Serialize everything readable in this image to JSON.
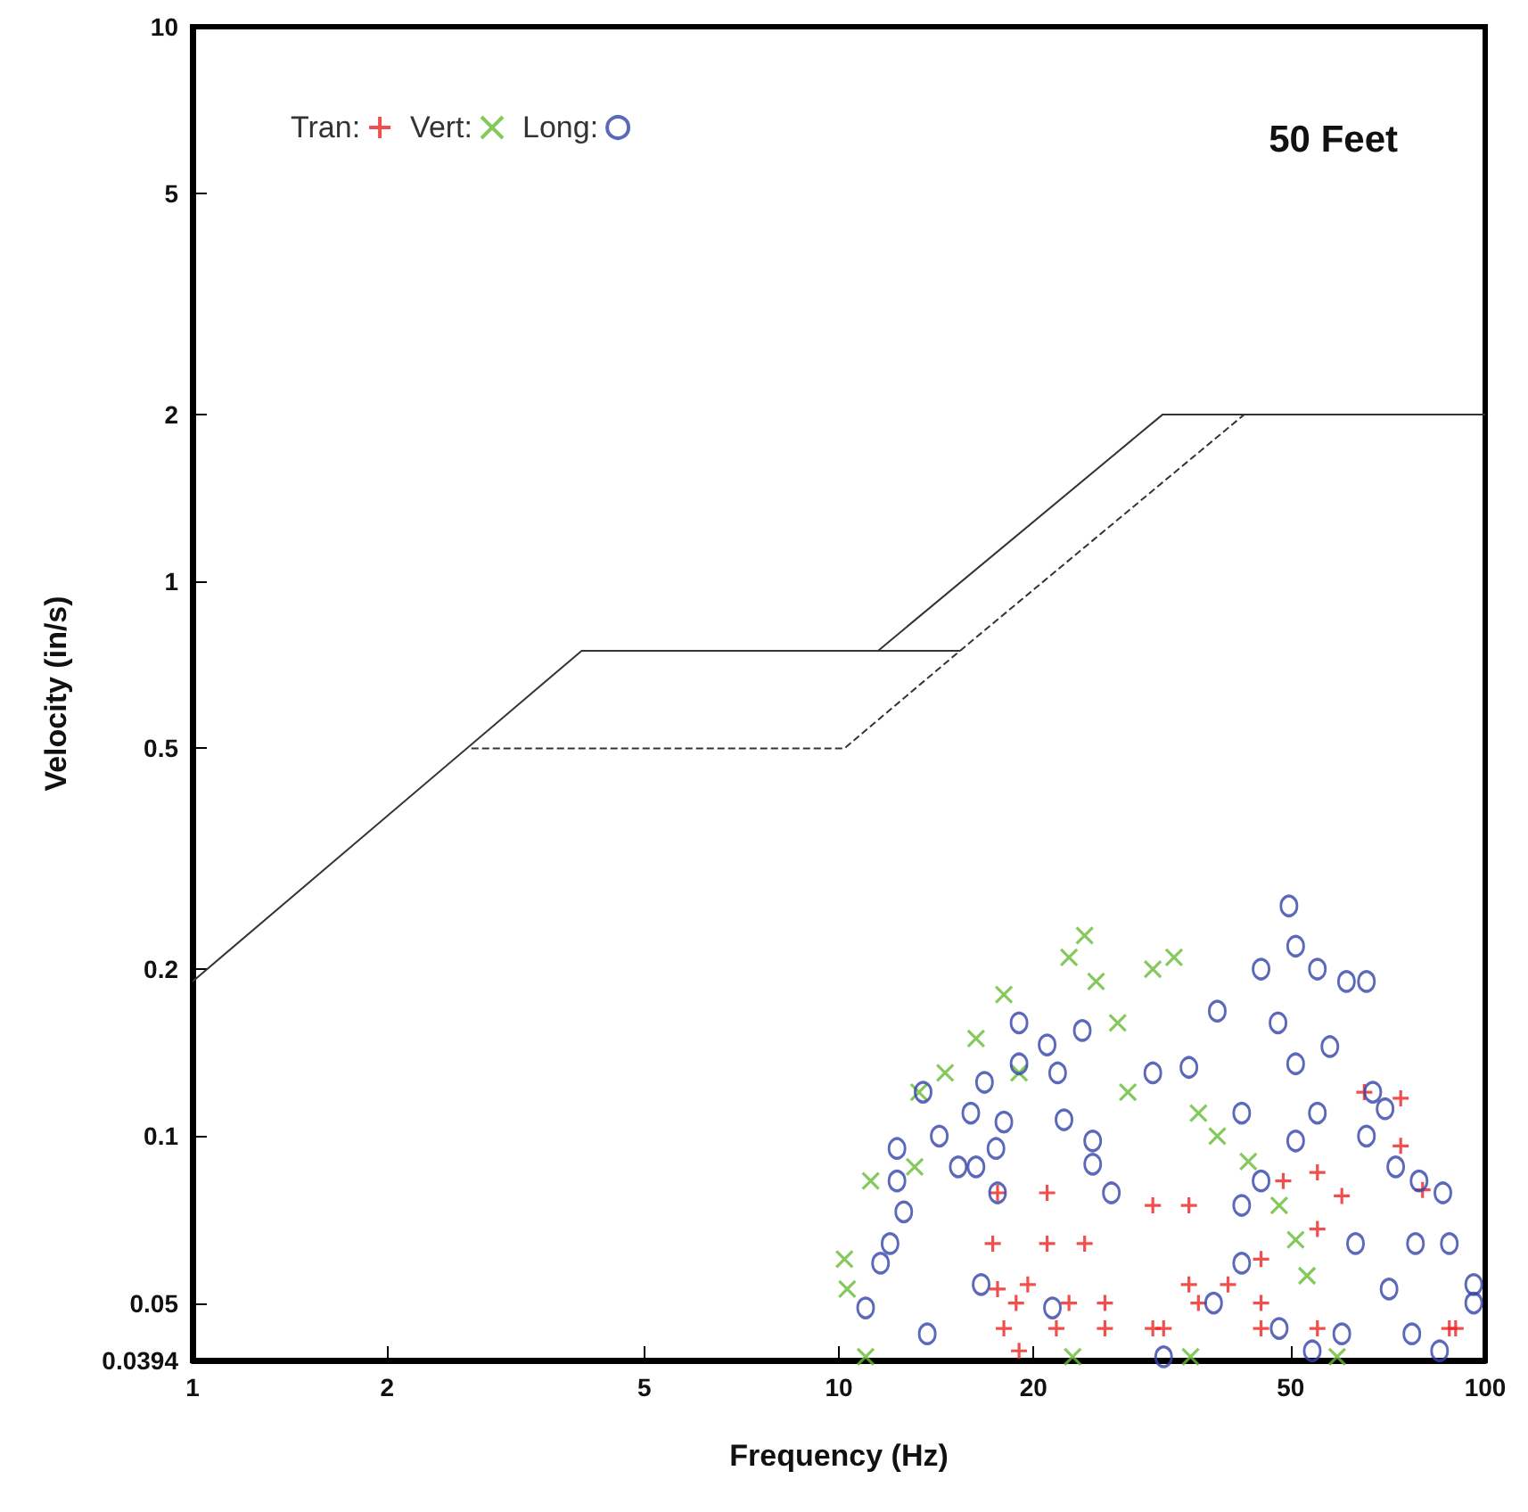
{
  "chart_data": {
    "type": "scatter",
    "title": "50 Feet",
    "xlabel": "Frequency (Hz)",
    "ylabel": "Velocity (in/s)",
    "log": "xy",
    "xlim": [
      1,
      100
    ],
    "ylim": [
      0.0394,
      10
    ],
    "xticks": [
      1,
      2,
      5,
      10,
      20,
      50,
      100
    ],
    "yticks": [
      0.0394,
      0.05,
      0.1,
      0.2,
      0.5,
      1,
      2,
      5,
      10
    ],
    "grid": false,
    "legend": "top left",
    "series": [
      {
        "name": "Tran:",
        "color": "#ee2222",
        "marker": "plus",
        "x": [
          17.6,
          21,
          17.3,
          21,
          24,
          17.6,
          19.6,
          18.8,
          22.7,
          25.8,
          18,
          21.7,
          25.8,
          30.6,
          19,
          30.6,
          34.8,
          48.7,
          55,
          60,
          74,
          45,
          55,
          34.8,
          40,
          45,
          36,
          31.8,
          45,
          55,
          88,
          74,
          65,
          80,
          90
        ],
        "values": [
          0.079,
          0.079,
          0.064,
          0.064,
          0.064,
          0.053,
          0.054,
          0.05,
          0.05,
          0.05,
          0.045,
          0.045,
          0.045,
          0.045,
          0.041,
          0.075,
          0.075,
          0.083,
          0.086,
          0.078,
          0.096,
          0.06,
          0.068,
          0.054,
          0.054,
          0.05,
          0.05,
          0.045,
          0.045,
          0.045,
          0.045,
          0.117,
          0.12,
          0.08,
          0.045
        ]
      },
      {
        "name": "Vert:",
        "color": "#66bb33",
        "marker": "cross",
        "x": [
          10.2,
          10.3,
          11.2,
          13.1,
          13.3,
          14.6,
          16.3,
          18,
          19,
          22.7,
          24,
          25,
          27,
          28,
          30.6,
          33,
          36,
          38.5,
          43,
          48,
          50.9,
          53,
          59,
          11,
          23,
          35
        ],
        "values": [
          0.06,
          0.053,
          0.083,
          0.088,
          0.12,
          0.13,
          0.15,
          0.18,
          0.13,
          0.21,
          0.23,
          0.19,
          0.16,
          0.12,
          0.2,
          0.21,
          0.11,
          0.1,
          0.09,
          0.075,
          0.065,
          0.056,
          0.04,
          0.04,
          0.04,
          0.04
        ]
      },
      {
        "name": "Long:",
        "color": "#3344aa",
        "marker": "circle",
        "x": [
          11,
          11.6,
          12,
          12.6,
          12.3,
          12.3,
          13.5,
          14.3,
          15.3,
          16.3,
          16,
          16.8,
          17.5,
          17.6,
          18,
          19,
          19,
          21,
          21.8,
          22.3,
          23.8,
          24.7,
          24.7,
          26.4,
          30.6,
          13.7,
          16.6,
          21.4,
          31.8,
          34.8,
          38.5,
          42,
          42,
          42,
          45,
          47.8,
          49.7,
          50.9,
          50.9,
          50.9,
          55,
          57.5,
          61,
          65.5,
          67,
          70,
          72.7,
          79,
          86,
          88,
          96,
          96,
          78,
          63,
          71,
          60,
          77,
          85,
          54,
          38,
          48,
          65.5,
          55,
          45
        ],
        "values": [
          0.049,
          0.059,
          0.064,
          0.073,
          0.083,
          0.095,
          0.12,
          0.1,
          0.088,
          0.088,
          0.11,
          0.125,
          0.095,
          0.079,
          0.106,
          0.16,
          0.135,
          0.146,
          0.13,
          0.107,
          0.155,
          0.098,
          0.089,
          0.079,
          0.13,
          0.044,
          0.054,
          0.049,
          0.04,
          0.133,
          0.168,
          0.11,
          0.075,
          0.059,
          0.2,
          0.16,
          0.26,
          0.22,
          0.135,
          0.098,
          0.2,
          0.145,
          0.19,
          0.19,
          0.12,
          0.112,
          0.088,
          0.083,
          0.079,
          0.064,
          0.054,
          0.05,
          0.064,
          0.064,
          0.053,
          0.044,
          0.044,
          0.041,
          0.041,
          0.05,
          0.045,
          0.1,
          0.11,
          0.083
        ]
      },
      {
        "type": "line",
        "color": "#333333",
        "line_style": "solid",
        "marker": "none",
        "x": [
          1,
          4,
          11.5,
          31.7,
          100
        ],
        "values": [
          0.19,
          0.75,
          0.75,
          2,
          2
        ]
      },
      {
        "type": "line",
        "color": "#333333",
        "line_style": "solid",
        "marker": "none",
        "x": [
          11.5,
          15.4
        ],
        "values": [
          0.75,
          0.75
        ]
      },
      {
        "type": "line",
        "color": "#333333",
        "line_style": "dashed",
        "marker": "none",
        "x": [
          2.7,
          10.2,
          15.4,
          42.4
        ],
        "values": [
          0.5,
          0.5,
          0.75,
          2
        ]
      }
    ]
  }
}
